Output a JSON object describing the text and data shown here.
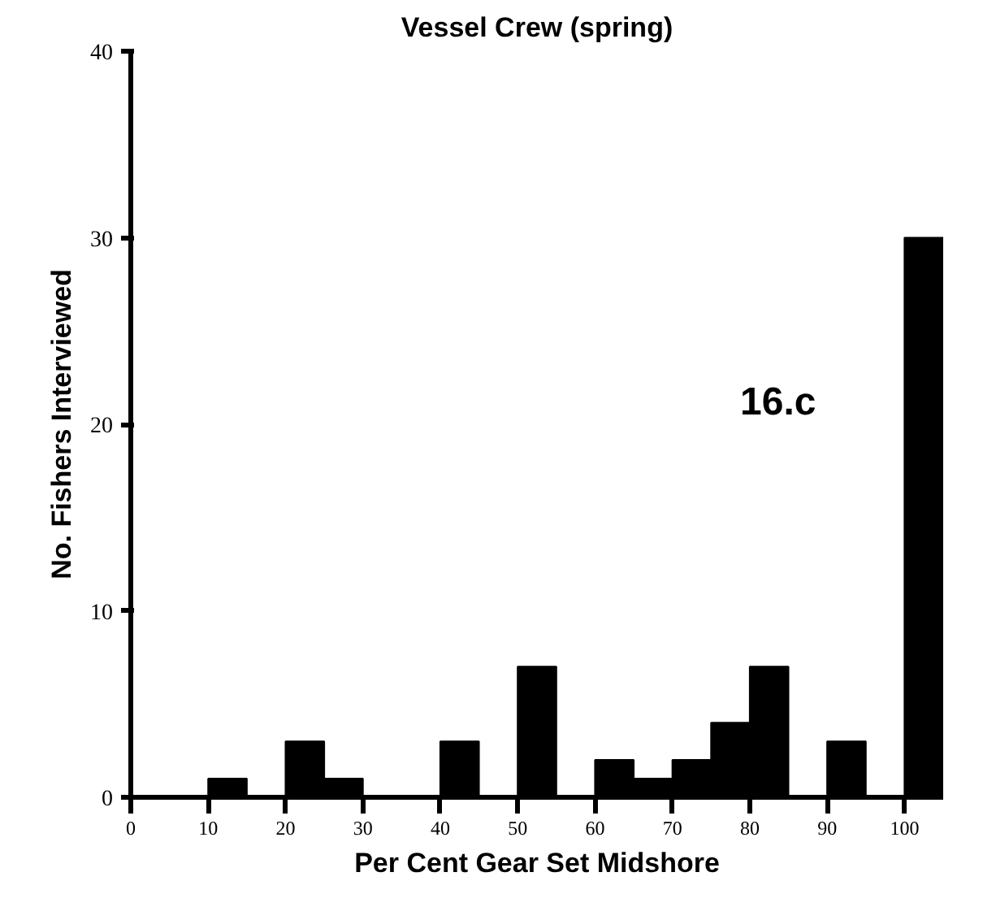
{
  "chart_data": {
    "type": "histogram",
    "title": "Vessel Crew (spring)",
    "xlabel": "Per Cent Gear Set Midshore",
    "ylabel": "No. Fishers Interviewed",
    "bins": [
      0,
      5,
      10,
      15,
      20,
      25,
      30,
      35,
      40,
      45,
      50,
      55,
      60,
      65,
      70,
      75,
      80,
      85,
      90,
      95,
      100,
      105
    ],
    "values": [
      0,
      0,
      1,
      0,
      3,
      1,
      0,
      0,
      3,
      0,
      7,
      0,
      2,
      1,
      2,
      4,
      7,
      0,
      3,
      0,
      30
    ],
    "color": "#000000",
    "xlim": [
      0,
      105
    ],
    "ylim": [
      0,
      40
    ],
    "xticks": [
      0,
      10,
      20,
      30,
      40,
      50,
      60,
      70,
      80,
      90,
      100
    ],
    "yticks": [
      0,
      10,
      20,
      30,
      40
    ],
    "grid": false,
    "annotations": [
      "16.c"
    ]
  }
}
